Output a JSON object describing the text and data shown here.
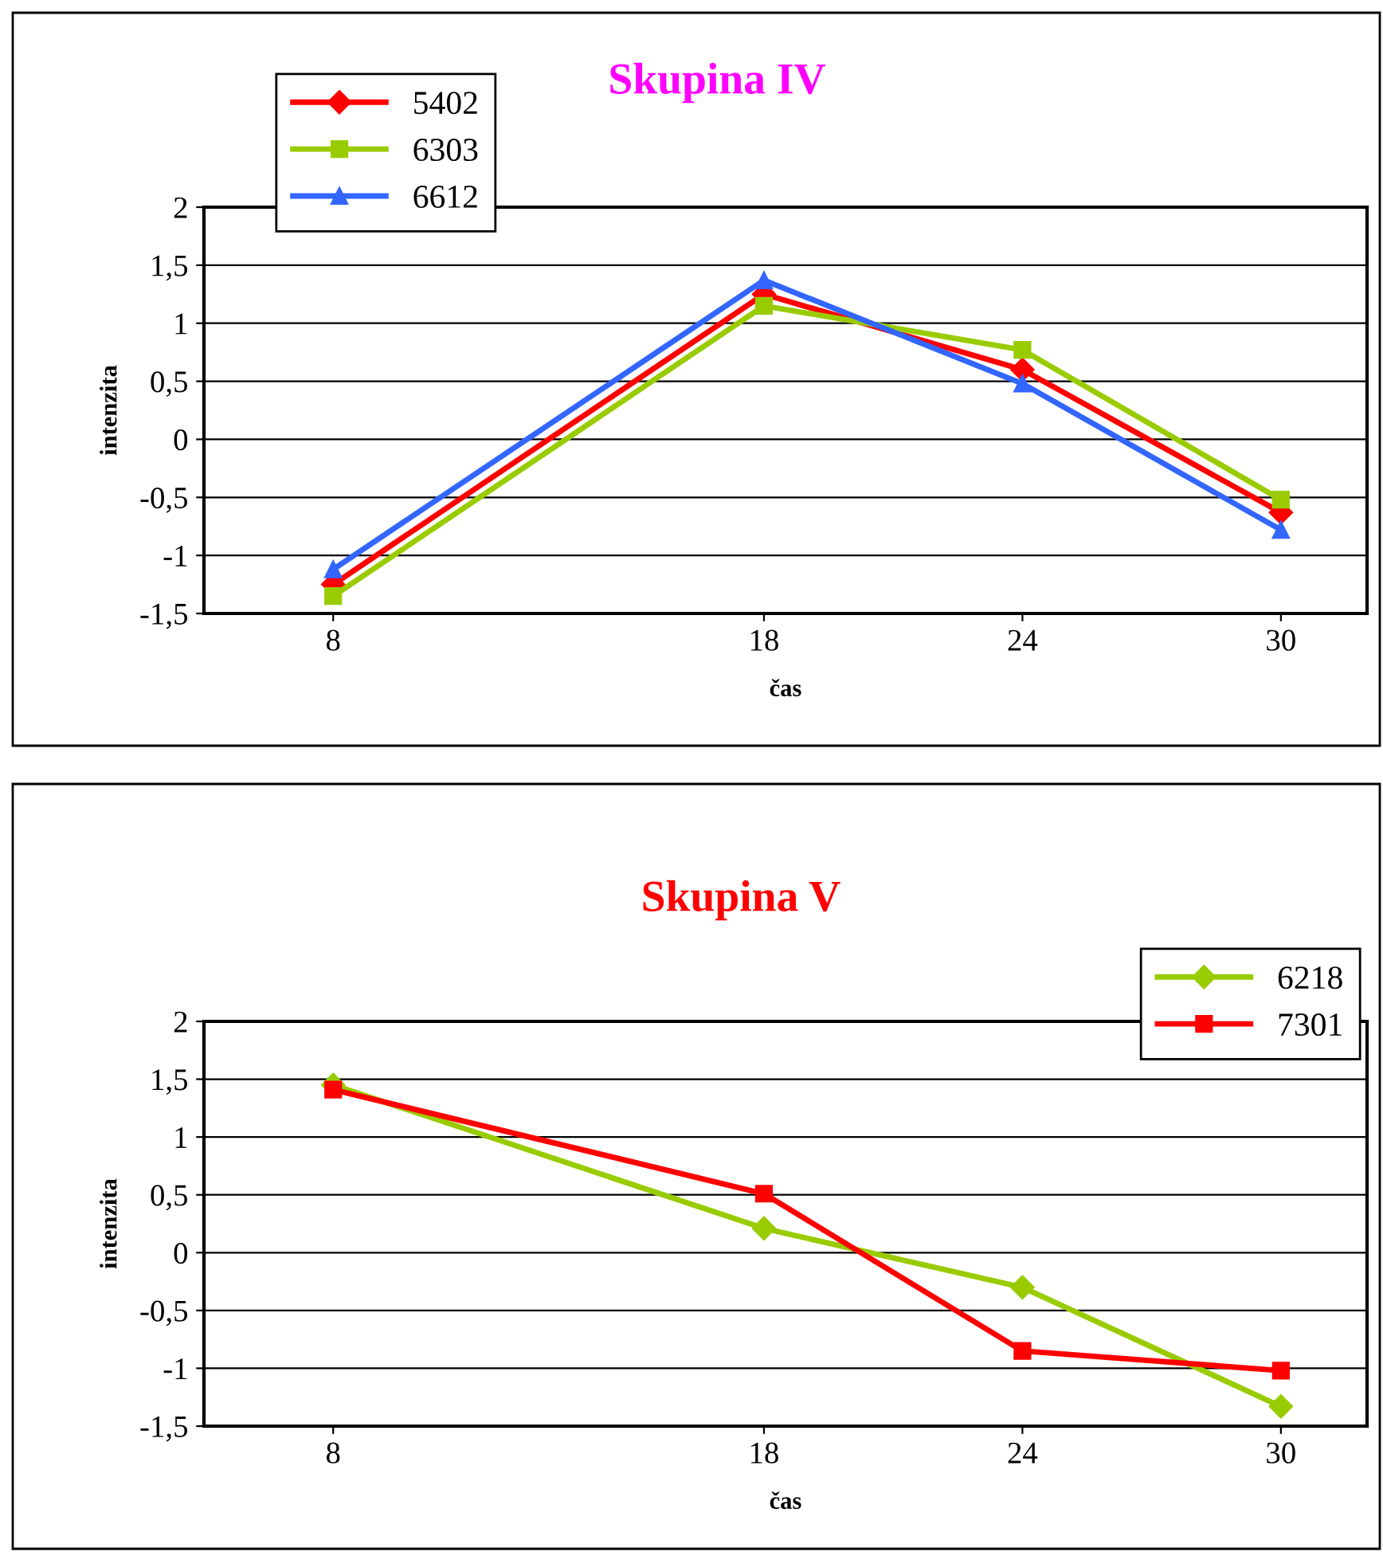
{
  "chart_data": [
    {
      "type": "line",
      "title": "Skupina IV",
      "xlabel": "čas",
      "ylabel": "intenzita",
      "x": [
        8,
        18,
        24,
        30
      ],
      "xlim": [
        5,
        32
      ],
      "xticks": [
        8,
        18,
        24,
        30
      ],
      "ylim": [
        -1.5,
        2
      ],
      "yticks": [
        {
          "value": -1.5,
          "label": "-1,5"
        },
        {
          "value": -1,
          "label": "-1"
        },
        {
          "value": -0.5,
          "label": "-0,5"
        },
        {
          "value": 0,
          "label": "0"
        },
        {
          "value": 0.5,
          "label": "0,5"
        },
        {
          "value": 1,
          "label": "1"
        },
        {
          "value": 1.5,
          "label": "1,5"
        },
        {
          "value": 2,
          "label": "2"
        }
      ],
      "grid": "y",
      "legend": "top left",
      "line_style": "solid",
      "series": [
        {
          "name": "5402",
          "color": "#ff0000",
          "marker": "diamond",
          "values": [
            -1.25,
            1.25,
            0.6,
            -0.63
          ]
        },
        {
          "name": "6303",
          "color": "#99cc00",
          "marker": "square",
          "values": [
            -1.35,
            1.15,
            0.77,
            -0.52
          ]
        },
        {
          "name": "6612",
          "color": "#3366ff",
          "marker": "triangle",
          "values": [
            -1.12,
            1.37,
            0.48,
            -0.78
          ]
        }
      ]
    },
    {
      "type": "line",
      "title": "Skupina V",
      "xlabel": "čas",
      "ylabel": "intenzita",
      "x": [
        8,
        18,
        24,
        30
      ],
      "xlim": [
        5,
        32
      ],
      "xticks": [
        8,
        18,
        24,
        30
      ],
      "ylim": [
        -1.5,
        2
      ],
      "yticks": [
        {
          "value": -1.5,
          "label": "-1,5"
        },
        {
          "value": -1,
          "label": "-1"
        },
        {
          "value": -0.5,
          "label": "-0,5"
        },
        {
          "value": 0,
          "label": "0"
        },
        {
          "value": 0.5,
          "label": "0,5"
        },
        {
          "value": 1,
          "label": "1"
        },
        {
          "value": 1.5,
          "label": "1,5"
        },
        {
          "value": 2,
          "label": "2"
        }
      ],
      "grid": "y",
      "legend": "top right",
      "line_style": "solid",
      "series": [
        {
          "name": "6218",
          "color": "#99cc00",
          "marker": "diamond",
          "values": [
            1.45,
            0.21,
            -0.3,
            -1.33
          ]
        },
        {
          "name": "7301",
          "color": "#ff0000",
          "marker": "square",
          "values": [
            1.41,
            0.51,
            -0.85,
            -1.02
          ]
        }
      ]
    }
  ]
}
